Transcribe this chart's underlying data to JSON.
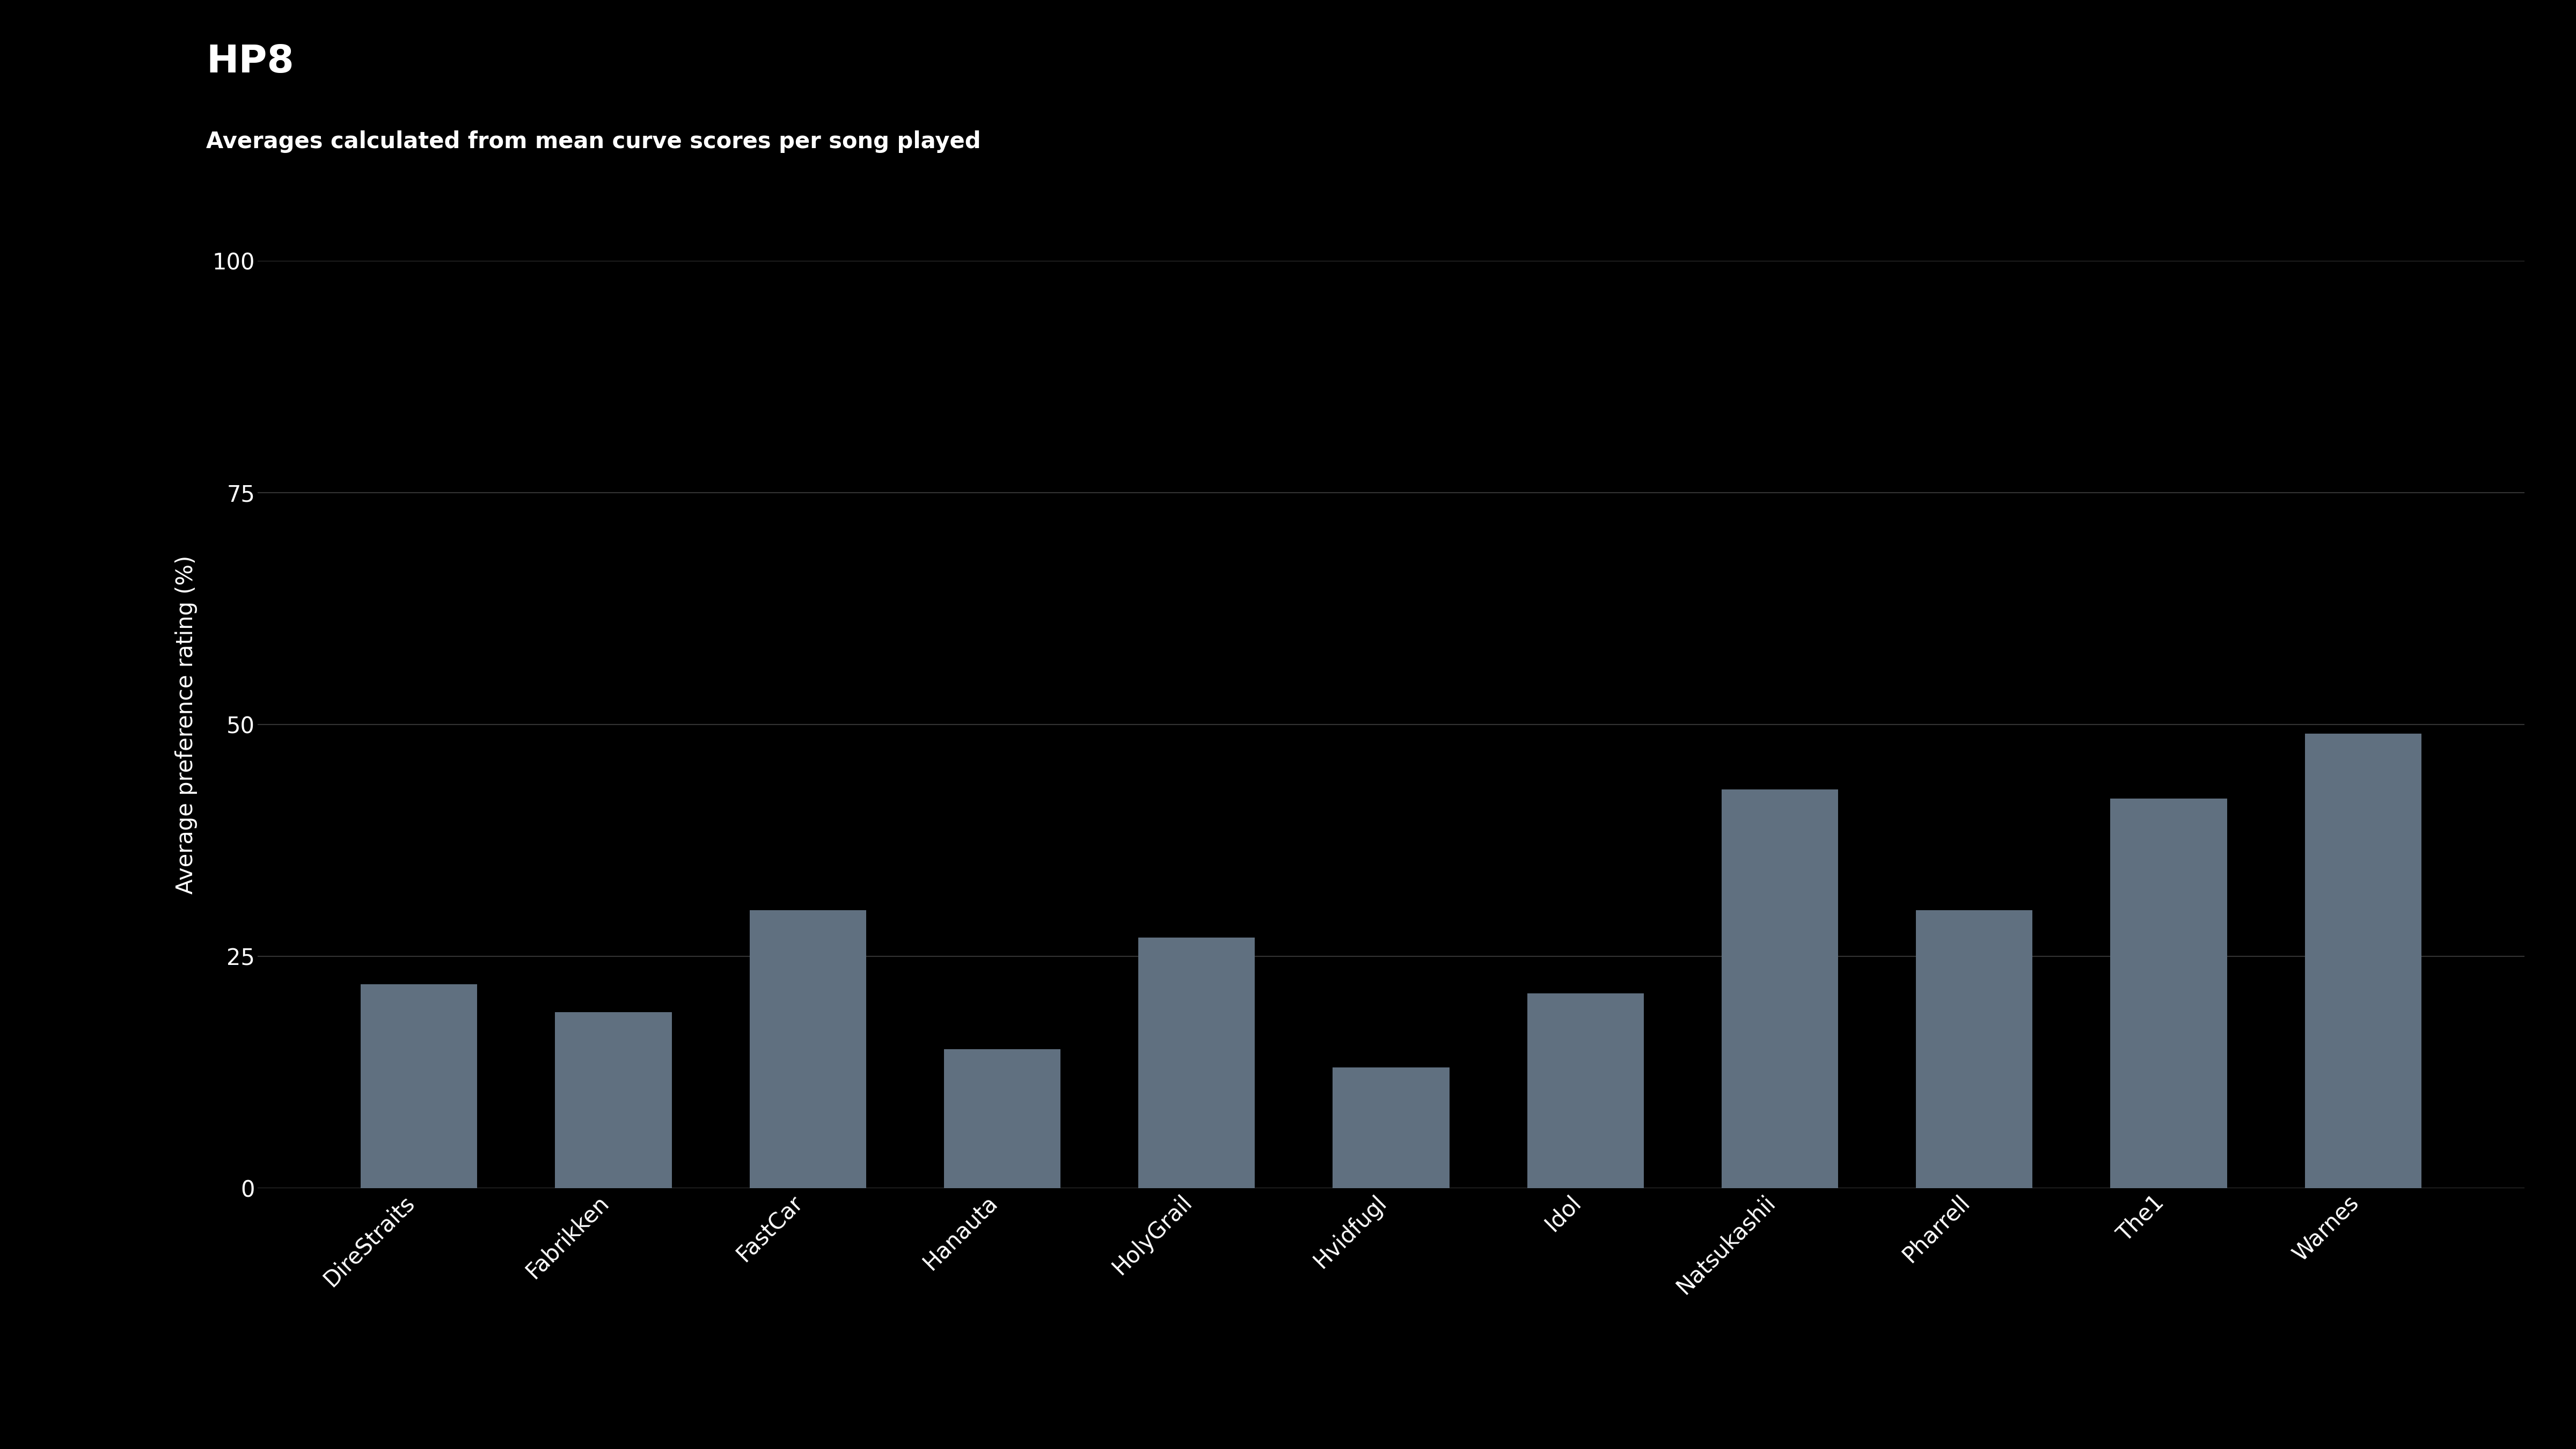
{
  "categories": [
    "DireStraits",
    "Fabrikken",
    "FastCar",
    "Hanauta",
    "HolyGrail",
    "Hvidfugl",
    "Idol",
    "Natsukashii",
    "Pharrell",
    "The1",
    "Warnes"
  ],
  "values": [
    22.0,
    19.0,
    30.0,
    15.0,
    27.0,
    13.0,
    21.0,
    43.0,
    30.0,
    42.0,
    49.0
  ],
  "bar_color": "#607080",
  "background_color": "#000000",
  "text_color": "#ffffff",
  "grid_color": "#333333",
  "title": "HP8",
  "subtitle": "Averages calculated from mean curve scores per song played",
  "ylabel": "Average preference rating (%)",
  "ylim": [
    0,
    100
  ],
  "yticks": [
    0,
    25,
    50,
    75,
    100
  ],
  "title_fontsize": 52,
  "subtitle_fontsize": 30,
  "ylabel_fontsize": 30,
  "ytick_fontsize": 30,
  "xtick_fontsize": 30
}
